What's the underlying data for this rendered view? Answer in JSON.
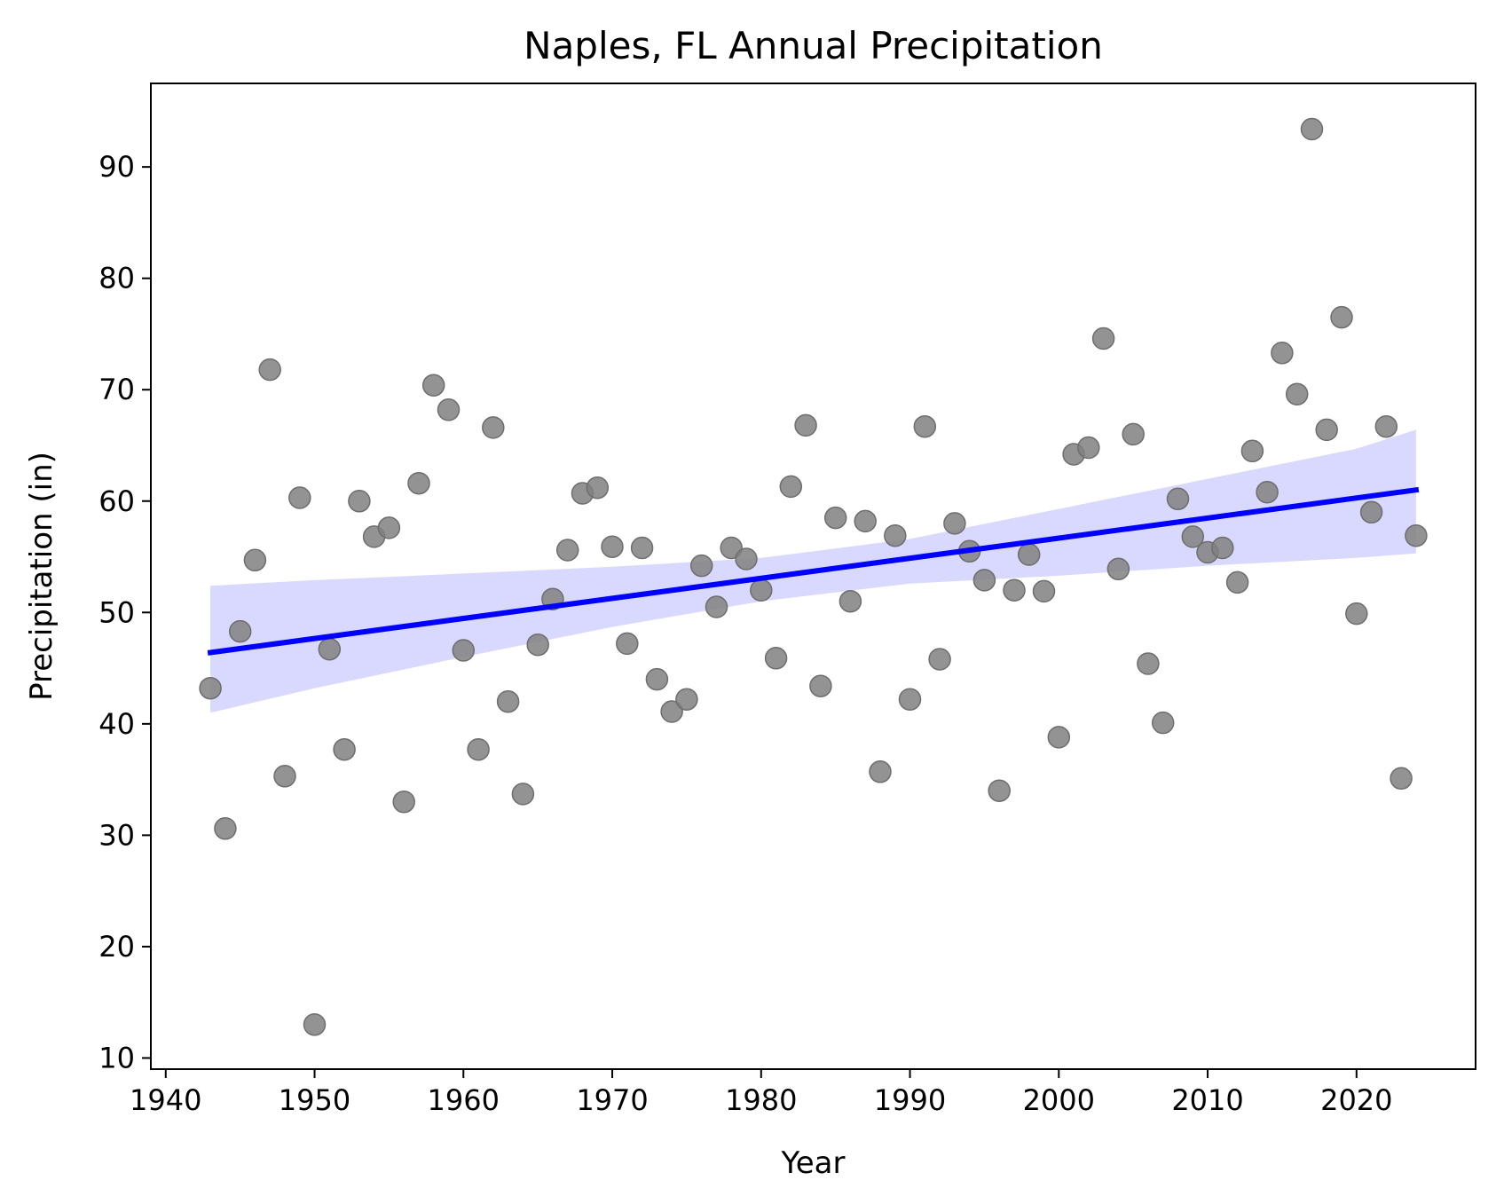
{
  "chart_data": {
    "type": "scatter",
    "title": "Naples, FL Annual Precipitation",
    "xlabel": "Year",
    "ylabel": "Precipitation (in)",
    "xlim": [
      1939.0,
      2028.0
    ],
    "ylim": [
      9.0,
      97.5
    ],
    "xticks": [
      1940,
      1950,
      1960,
      1970,
      1980,
      1990,
      2000,
      2010,
      2020
    ],
    "yticks": [
      10,
      20,
      30,
      40,
      50,
      60,
      70,
      80,
      90
    ],
    "grid": false,
    "legend": "none",
    "colors": {
      "points": "#808080",
      "fit_line": "#0000ff",
      "ci_band": "#ccccff"
    },
    "points": {
      "x": [
        1943,
        1944,
        1945,
        1946,
        1947,
        1948,
        1949,
        1950,
        1951,
        1952,
        1953,
        1954,
        1955,
        1956,
        1957,
        1958,
        1959,
        1960,
        1961,
        1962,
        1963,
        1964,
        1965,
        1966,
        1967,
        1968,
        1969,
        1970,
        1971,
        1972,
        1973,
        1974,
        1975,
        1976,
        1977,
        1978,
        1979,
        1980,
        1981,
        1982,
        1983,
        1984,
        1985,
        1986,
        1987,
        1988,
        1989,
        1990,
        1991,
        1992,
        1993,
        1994,
        1995,
        1996,
        1997,
        1998,
        1999,
        2000,
        2001,
        2002,
        2003,
        2004,
        2005,
        2006,
        2007,
        2008,
        2009,
        2010,
        2011,
        2012,
        2013,
        2014,
        2015,
        2016,
        2017,
        2018,
        2019,
        2020,
        2021,
        2022,
        2023,
        2024
      ],
      "y": [
        43.2,
        30.6,
        48.3,
        54.7,
        71.8,
        35.3,
        60.3,
        13.0,
        46.7,
        37.7,
        60.0,
        56.8,
        57.6,
        33.0,
        61.6,
        70.4,
        68.2,
        46.6,
        37.7,
        66.6,
        42.0,
        33.7,
        47.1,
        51.2,
        55.6,
        60.7,
        61.2,
        55.9,
        47.2,
        55.8,
        44.0,
        41.1,
        42.2,
        54.2,
        50.5,
        55.8,
        54.8,
        52.0,
        45.9,
        61.3,
        66.8,
        43.4,
        58.5,
        51.0,
        58.2,
        35.7,
        56.9,
        42.2,
        66.7,
        45.8,
        58.0,
        55.5,
        52.9,
        34.0,
        52.0,
        55.2,
        51.9,
        38.8,
        64.2,
        64.8,
        74.6,
        53.9,
        66.0,
        45.4,
        40.1,
        60.2,
        56.8,
        55.4,
        55.8,
        52.7,
        64.5,
        60.8,
        73.3,
        69.6,
        93.4,
        66.4,
        76.5,
        49.9,
        59.0,
        66.7,
        35.1,
        56.9
      ]
    },
    "regression": {
      "x": [
        1943,
        2024
      ],
      "y": [
        46.4,
        61.0
      ]
    },
    "ci_band": {
      "x": [
        1943,
        1950,
        1960,
        1970,
        1980,
        1990,
        2000,
        2010,
        2020,
        2024
      ],
      "upper": [
        52.4,
        52.9,
        53.5,
        54.1,
        54.9,
        56.6,
        59.3,
        62.0,
        64.7,
        66.4
      ],
      "lower": [
        41.0,
        43.2,
        46.0,
        48.7,
        51.0,
        52.6,
        53.3,
        54.2,
        54.9,
        55.3
      ]
    }
  }
}
